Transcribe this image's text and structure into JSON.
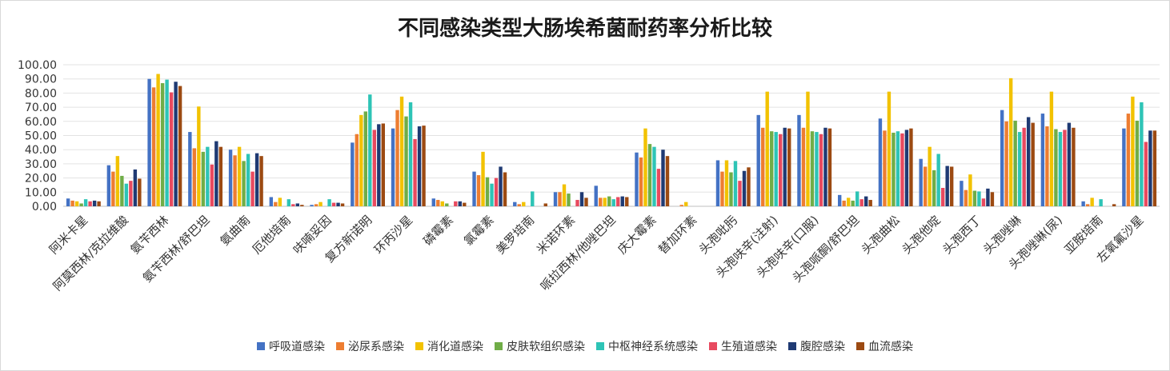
{
  "chart_data": {
    "type": "bar",
    "title": "不同感染类型大肠埃希菌耐药率分析比较",
    "ylim": [
      0,
      100
    ],
    "yticks": [
      "0.00",
      "10.00",
      "20.00",
      "30.00",
      "40.00",
      "50.00",
      "60.00",
      "70.00",
      "80.00",
      "90.00",
      "100.00"
    ],
    "grid": true,
    "legend_position": "bottom",
    "categories": [
      "阿米卡星",
      "阿莫西林/克拉维酸",
      "氨苄西林",
      "氨苄西林/舒巴坦",
      "氨曲南",
      "厄他培南",
      "呋喃妥因",
      "复方新诺明",
      "环丙沙星",
      "磷霉素",
      "氯霉素",
      "美罗培南",
      "米诺环素",
      "哌拉西林/他唑巴坦",
      "庆大霉素",
      "替加环素",
      "头孢吡肟",
      "头孢呋辛(注射)",
      "头孢呋辛(口服)",
      "头孢哌酮/舒巴坦",
      "头孢曲松",
      "头孢他啶",
      "头孢西丁",
      "头孢唑啉",
      "头孢唑啉(尿)",
      "亚胺培南",
      "左氧氟沙星"
    ],
    "series": [
      {
        "name": "呼吸道感染",
        "color": "#4472C4",
        "values": [
          5.5,
          29,
          90,
          52.5,
          40,
          6.5,
          1,
          45,
          55,
          5.5,
          24.5,
          3,
          10,
          14.5,
          38,
          0,
          32.5,
          64.5,
          64.5,
          8,
          62,
          33.5,
          18,
          68,
          65.5,
          3.5,
          55
        ]
      },
      {
        "name": "泌尿系感染",
        "color": "#ED7D31",
        "values": [
          4,
          24.5,
          84,
          41,
          36,
          3,
          1.5,
          51,
          68,
          4.5,
          22,
          1.5,
          10,
          6,
          34.5,
          1,
          24.5,
          55.5,
          55.5,
          4,
          53.5,
          28,
          11.5,
          60,
          56.5,
          1.5,
          65.5
        ]
      },
      {
        "name": "消化道感染",
        "color": "#F2C200",
        "values": [
          3.5,
          35.5,
          93.5,
          70.5,
          42,
          6,
          3,
          64.5,
          77.5,
          3.5,
          38.5,
          3,
          15.5,
          6,
          55,
          3,
          32.5,
          81,
          81,
          6,
          81,
          42,
          22.5,
          90.5,
          81,
          6,
          77.5
        ]
      },
      {
        "name": "皮肤软组织感染",
        "color": "#70AD47",
        "values": [
          2,
          21.5,
          87,
          38.5,
          32,
          0,
          0,
          67,
          63.5,
          2,
          20.5,
          0,
          9,
          7,
          44,
          0,
          24,
          53,
          53,
          4,
          52,
          25.5,
          11,
          60.5,
          54.5,
          0,
          60.5
        ]
      },
      {
        "name": "中枢神经系统感染",
        "color": "#2EC4B6",
        "values": [
          5,
          16,
          89.5,
          42,
          37,
          5,
          5,
          79,
          73.5,
          0,
          16,
          10.5,
          0,
          5,
          42,
          0,
          32,
          52.5,
          52.5,
          10.5,
          53,
          37,
          10.5,
          52.5,
          52.5,
          5,
          73.5
        ]
      },
      {
        "name": "生殖道感染",
        "color": "#E84A5F",
        "values": [
          3.5,
          18,
          80.5,
          29.5,
          24.5,
          1.5,
          2.5,
          54,
          47.5,
          3.5,
          20,
          0,
          4.5,
          6.5,
          26.5,
          0,
          18,
          51,
          51,
          5,
          51.5,
          13,
          5.5,
          55.5,
          54,
          0,
          45.5
        ]
      },
      {
        "name": "腹腔感染",
        "color": "#1F3A73",
        "values": [
          4,
          26,
          88,
          46,
          37.5,
          2,
          2.5,
          58,
          56.5,
          3.5,
          28,
          0,
          10,
          7,
          40,
          0,
          25,
          55.5,
          55.5,
          7,
          54,
          28.5,
          12.5,
          63,
          59,
          0,
          53.5
        ]
      },
      {
        "name": "血流感染",
        "color": "#9C4A12",
        "values": [
          3.5,
          19.5,
          85,
          42,
          35.5,
          1,
          2,
          58.5,
          57,
          2.5,
          24,
          2,
          6,
          6.5,
          35.5,
          0,
          27.5,
          55,
          55,
          4.5,
          55,
          28,
          10,
          59,
          55.5,
          1.5,
          53.5
        ]
      }
    ]
  }
}
